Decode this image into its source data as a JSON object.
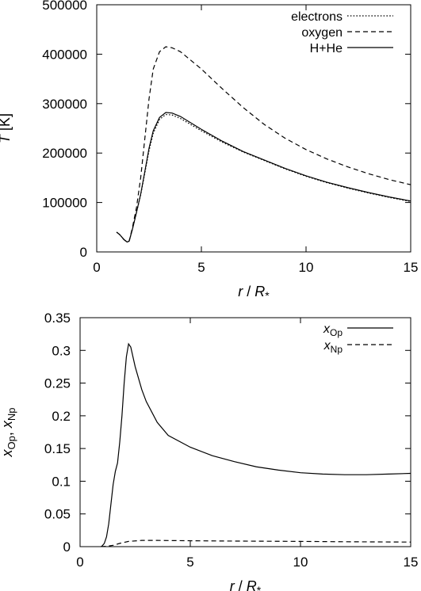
{
  "chart_data": [
    {
      "type": "line",
      "title": "",
      "xlabel": {
        "var": "r",
        "sep": " / ",
        "unit": "R",
        "unit_sub": "*"
      },
      "ylabel": {
        "var": "T",
        "unit": "[K]"
      },
      "xlim": [
        0,
        15
      ],
      "ylim": [
        0,
        500000
      ],
      "xticks": [
        0,
        5,
        10,
        15
      ],
      "yticks": [
        0,
        100000,
        200000,
        300000,
        400000,
        500000
      ],
      "grid": false,
      "legend_position": "top-right",
      "series": [
        {
          "name": "electrons",
          "style": "dotted",
          "points": [
            [
              0.95,
              40000
            ],
            [
              1.1,
              35000
            ],
            [
              1.3,
              25000
            ],
            [
              1.45,
              20000
            ],
            [
              1.55,
              22000
            ],
            [
              1.7,
              45000
            ],
            [
              1.9,
              80000
            ],
            [
              2.1,
              115000
            ],
            [
              2.3,
              160000
            ],
            [
              2.5,
              205000
            ],
            [
              2.7,
              240000
            ],
            [
              3.0,
              268000
            ],
            [
              3.3,
              278000
            ],
            [
              3.6,
              277000
            ],
            [
              4.0,
              270000
            ],
            [
              5.0,
              245000
            ],
            [
              6.0,
              222000
            ],
            [
              7.0,
              202000
            ],
            [
              8.0,
              185000
            ],
            [
              9.0,
              168000
            ],
            [
              10.0,
              153000
            ],
            [
              11.0,
              140000
            ],
            [
              12.0,
              129000
            ],
            [
              13.0,
              119000
            ],
            [
              14.0,
              110000
            ],
            [
              15.0,
              102000
            ]
          ]
        },
        {
          "name": "oxygen",
          "style": "dashed",
          "points": [
            [
              0.95,
              40000
            ],
            [
              1.1,
              35000
            ],
            [
              1.3,
              25000
            ],
            [
              1.45,
              20000
            ],
            [
              1.55,
              22000
            ],
            [
              1.7,
              48000
            ],
            [
              1.9,
              90000
            ],
            [
              2.1,
              150000
            ],
            [
              2.3,
              230000
            ],
            [
              2.5,
              310000
            ],
            [
              2.7,
              370000
            ],
            [
              3.0,
              405000
            ],
            [
              3.3,
              415000
            ],
            [
              3.6,
              413000
            ],
            [
              4.0,
              405000
            ],
            [
              5.0,
              370000
            ],
            [
              6.0,
              330000
            ],
            [
              7.0,
              292000
            ],
            [
              8.0,
              258000
            ],
            [
              9.0,
              230000
            ],
            [
              10.0,
              207000
            ],
            [
              11.0,
              188000
            ],
            [
              12.0,
              172000
            ],
            [
              13.0,
              158000
            ],
            [
              14.0,
              146000
            ],
            [
              15.0,
              136000
            ]
          ]
        },
        {
          "name": "H+He",
          "style": "solid",
          "points": [
            [
              0.95,
              40000
            ],
            [
              1.1,
              35000
            ],
            [
              1.3,
              25000
            ],
            [
              1.45,
              20000
            ],
            [
              1.55,
              22000
            ],
            [
              1.7,
              45000
            ],
            [
              1.9,
              80000
            ],
            [
              2.1,
              117000
            ],
            [
              2.3,
              163000
            ],
            [
              2.5,
              210000
            ],
            [
              2.7,
              245000
            ],
            [
              3.0,
              272000
            ],
            [
              3.3,
              282000
            ],
            [
              3.6,
              281000
            ],
            [
              4.0,
              274000
            ],
            [
              5.0,
              248000
            ],
            [
              6.0,
              224000
            ],
            [
              7.0,
              203000
            ],
            [
              8.0,
              186000
            ],
            [
              9.0,
              169000
            ],
            [
              10.0,
              154000
            ],
            [
              11.0,
              141000
            ],
            [
              12.0,
              130000
            ],
            [
              13.0,
              120000
            ],
            [
              14.0,
              111000
            ],
            [
              15.0,
              103000
            ]
          ]
        }
      ]
    },
    {
      "type": "line",
      "title": "",
      "xlabel": {
        "var": "r",
        "sep": " / ",
        "unit": "R",
        "unit_sub": "*"
      },
      "ylabel": {
        "var1": "x",
        "sub1": "Op",
        "sep": ", ",
        "var2": "x",
        "sub2": "Np"
      },
      "xlim": [
        0,
        15
      ],
      "ylim": [
        0,
        0.35
      ],
      "xticks": [
        0,
        5,
        10,
        15
      ],
      "yticks": [
        0,
        0.05,
        0.1,
        0.15,
        0.2,
        0.25,
        0.3,
        0.35
      ],
      "grid": false,
      "legend_position": "top-right",
      "series": [
        {
          "name": "x",
          "name_sub": "Op",
          "style": "solid",
          "points": [
            [
              0.95,
              0.0
            ],
            [
              1.0,
              0.001
            ],
            [
              1.1,
              0.005
            ],
            [
              1.2,
              0.015
            ],
            [
              1.3,
              0.035
            ],
            [
              1.4,
              0.065
            ],
            [
              1.5,
              0.095
            ],
            [
              1.6,
              0.115
            ],
            [
              1.7,
              0.128
            ],
            [
              1.8,
              0.16
            ],
            [
              1.9,
              0.2
            ],
            [
              2.0,
              0.25
            ],
            [
              2.1,
              0.29
            ],
            [
              2.2,
              0.31
            ],
            [
              2.3,
              0.305
            ],
            [
              2.5,
              0.275
            ],
            [
              2.8,
              0.24
            ],
            [
              3.0,
              0.222
            ],
            [
              3.5,
              0.19
            ],
            [
              4.0,
              0.17
            ],
            [
              5.0,
              0.152
            ],
            [
              6.0,
              0.139
            ],
            [
              7.0,
              0.13
            ],
            [
              8.0,
              0.122
            ],
            [
              9.0,
              0.117
            ],
            [
              10.0,
              0.113
            ],
            [
              11.0,
              0.111
            ],
            [
              12.0,
              0.11
            ],
            [
              13.0,
              0.11
            ],
            [
              14.0,
              0.111
            ],
            [
              15.0,
              0.112
            ]
          ]
        },
        {
          "name": "x",
          "name_sub": "Np",
          "style": "dashed",
          "points": [
            [
              0.95,
              0.0
            ],
            [
              1.2,
              0.0005
            ],
            [
              1.5,
              0.002
            ],
            [
              1.8,
              0.005
            ],
            [
              2.2,
              0.008
            ],
            [
              2.8,
              0.0095
            ],
            [
              3.5,
              0.0095
            ],
            [
              5.0,
              0.009
            ],
            [
              7.0,
              0.0085
            ],
            [
              10.0,
              0.008
            ],
            [
              12.0,
              0.0075
            ],
            [
              15.0,
              0.007
            ]
          ]
        }
      ]
    }
  ]
}
